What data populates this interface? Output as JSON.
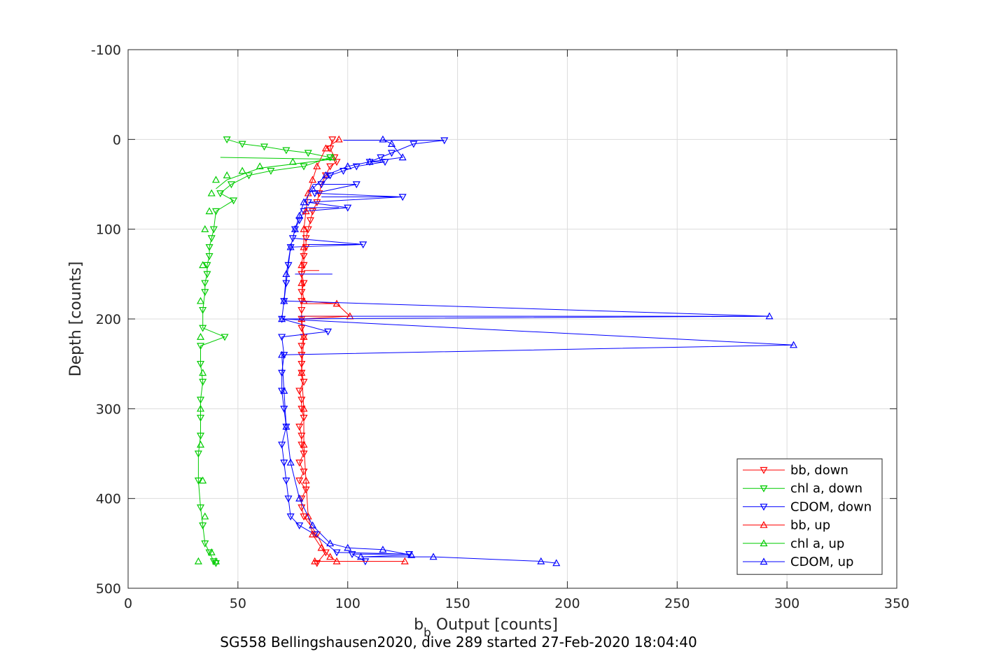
{
  "chart_data": {
    "type": "scatter",
    "xlabel": "b",
    "xlabel_sub": "b",
    "xlabel_rest": " Output [counts]",
    "ylabel": "Depth [counts]",
    "caption": "SG558 Bellingshausen2020, dive 289 started 27-Feb-2020 18:04:40",
    "xlim": [
      0,
      350
    ],
    "ylim": [
      -100,
      500
    ],
    "y_reversed": true,
    "grid": true,
    "legend_position": "bottom-right",
    "xticks": [
      "0",
      "50",
      "100",
      "150",
      "200",
      "250",
      "300",
      "350"
    ],
    "yticks": [
      "-100",
      "0",
      "100",
      "200",
      "300",
      "400",
      "500"
    ],
    "series": [
      {
        "name": "bb, down",
        "color": "#ff0000",
        "marker": "triangle-down",
        "x": [
          93,
          92,
          94,
          95,
          92,
          90,
          88,
          87,
          86,
          84,
          83,
          82,
          81,
          81,
          80,
          80,
          80,
          79,
          79,
          79,
          80,
          79,
          79,
          78,
          79,
          78,
          79,
          78,
          78,
          79,
          79,
          80,
          79,
          79,
          79,
          79,
          79,
          80,
          79,
          80,
          79,
          80,
          80,
          81,
          86,
          90,
          86
        ],
        "y": [
          0,
          10,
          20,
          25,
          30,
          40,
          50,
          60,
          70,
          80,
          90,
          100,
          110,
          120,
          130,
          140,
          160,
          180,
          200,
          210,
          220,
          240,
          260,
          280,
          300,
          320,
          340,
          360,
          380,
          400,
          410,
          420,
          150,
          170,
          190,
          230,
          250,
          270,
          290,
          310,
          330,
          350,
          370,
          390,
          440,
          460,
          472
        ]
      },
      {
        "name": "chl a, down",
        "color": "#00cc00",
        "marker": "triangle-down",
        "x": [
          45,
          52,
          62,
          72,
          82,
          92,
          80,
          65,
          55,
          47,
          42,
          40,
          39,
          38,
          37,
          36,
          35,
          34,
          34,
          33,
          33,
          34,
          33,
          33,
          33,
          32,
          32,
          33,
          34,
          35,
          37,
          39,
          40,
          48,
          44,
          37,
          36,
          35
        ],
        "y": [
          0,
          5,
          8,
          12,
          15,
          20,
          30,
          35,
          40,
          50,
          60,
          80,
          100,
          110,
          130,
          150,
          170,
          190,
          210,
          230,
          250,
          270,
          290,
          310,
          330,
          350,
          380,
          410,
          430,
          450,
          460,
          470,
          472,
          68,
          220,
          120,
          140,
          160
        ]
      },
      {
        "name": "CDOM, down",
        "color": "#0000ff",
        "marker": "triangle-down",
        "x": [
          144,
          130,
          120,
          115,
          110,
          104,
          98,
          92,
          88,
          85,
          82,
          80,
          78,
          76,
          75,
          74,
          73,
          72,
          71,
          70,
          70,
          71,
          70,
          70,
          71,
          72,
          70,
          71,
          72,
          73,
          74,
          78,
          85,
          95,
          108,
          128,
          125,
          107,
          104,
          91,
          117,
          100,
          102
        ],
        "y": [
          1,
          5,
          15,
          20,
          25,
          30,
          35,
          40,
          50,
          60,
          70,
          80,
          90,
          100,
          110,
          120,
          140,
          160,
          180,
          200,
          220,
          240,
          260,
          280,
          300,
          320,
          340,
          360,
          380,
          400,
          420,
          430,
          440,
          460,
          470,
          462,
          64,
          117,
          50,
          214,
          25,
          76,
          462
        ]
      },
      {
        "name": "bb, up",
        "color": "#ff0000",
        "marker": "triangle-up",
        "x": [
          96,
          90,
          86,
          84,
          82,
          81,
          80,
          80,
          79,
          79,
          80,
          79,
          80,
          79,
          80,
          80,
          81,
          82,
          84,
          88,
          92,
          95,
          101,
          85,
          126,
          95
        ],
        "y": [
          0,
          10,
          30,
          45,
          60,
          80,
          100,
          120,
          140,
          160,
          180,
          200,
          220,
          260,
          300,
          340,
          380,
          420,
          440,
          455,
          465,
          470,
          197,
          470,
          470,
          183
        ]
      },
      {
        "name": "chl a, up",
        "color": "#00cc00",
        "marker": "triangle-up",
        "x": [
          93,
          75,
          60,
          52,
          45,
          40,
          38,
          37,
          35,
          34,
          33,
          33,
          34,
          33,
          33,
          34,
          35,
          38,
          40,
          32
        ],
        "y": [
          20,
          25,
          30,
          35,
          40,
          45,
          60,
          80,
          100,
          140,
          180,
          220,
          260,
          300,
          340,
          380,
          420,
          460,
          470,
          470
        ],
        "line_x": [
          42,
          93,
          60,
          45,
          40
        ],
        "line_y": [
          20,
          22,
          32,
          45,
          55
        ]
      },
      {
        "name": "CDOM, up",
        "color": "#0000ff",
        "marker": "triangle-up",
        "x": [
          116,
          120,
          125,
          110,
          100,
          90,
          84,
          80,
          78,
          76,
          74,
          72,
          71,
          70,
          70,
          71,
          72,
          74,
          78,
          84,
          92,
          100,
          106,
          292,
          303,
          188,
          195,
          139,
          116,
          129
        ],
        "y": [
          0,
          5,
          20,
          25,
          30,
          40,
          55,
          70,
          85,
          100,
          120,
          150,
          180,
          200,
          240,
          280,
          320,
          360,
          400,
          430,
          450,
          455,
          465,
          197,
          229,
          470,
          472,
          465,
          457,
          463
        ]
      }
    ],
    "spikes": [
      {
        "series": "CDOM, up",
        "from": [
          78,
          197
        ],
        "to": [
          292,
          197
        ]
      },
      {
        "series": "bb, up",
        "from": [
          80,
          197
        ],
        "to": [
          101,
          197
        ]
      },
      {
        "series": "CDOM, down",
        "from": [
          88,
          64
        ],
        "to": [
          125,
          64
        ]
      },
      {
        "series": "CDOM, down",
        "from": [
          82,
          117
        ],
        "to": [
          107,
          117
        ]
      },
      {
        "series": "CDOM, down",
        "from": [
          84,
          50
        ],
        "to": [
          104,
          50
        ]
      },
      {
        "series": "CDOM, up",
        "from": [
          98,
          1
        ],
        "to": [
          144,
          1
        ]
      },
      {
        "series": "bb, up",
        "from": [
          80,
          183
        ],
        "to": [
          95,
          183
        ]
      },
      {
        "series": "CDOM, up",
        "from": [
          76,
          150
        ],
        "to": [
          93,
          150
        ]
      },
      {
        "series": "bb, down",
        "from": [
          80,
          146
        ],
        "to": [
          87,
          146
        ]
      },
      {
        "series": "CDOM, down",
        "from": [
          80,
          76
        ],
        "to": [
          96,
          76
        ]
      }
    ]
  }
}
